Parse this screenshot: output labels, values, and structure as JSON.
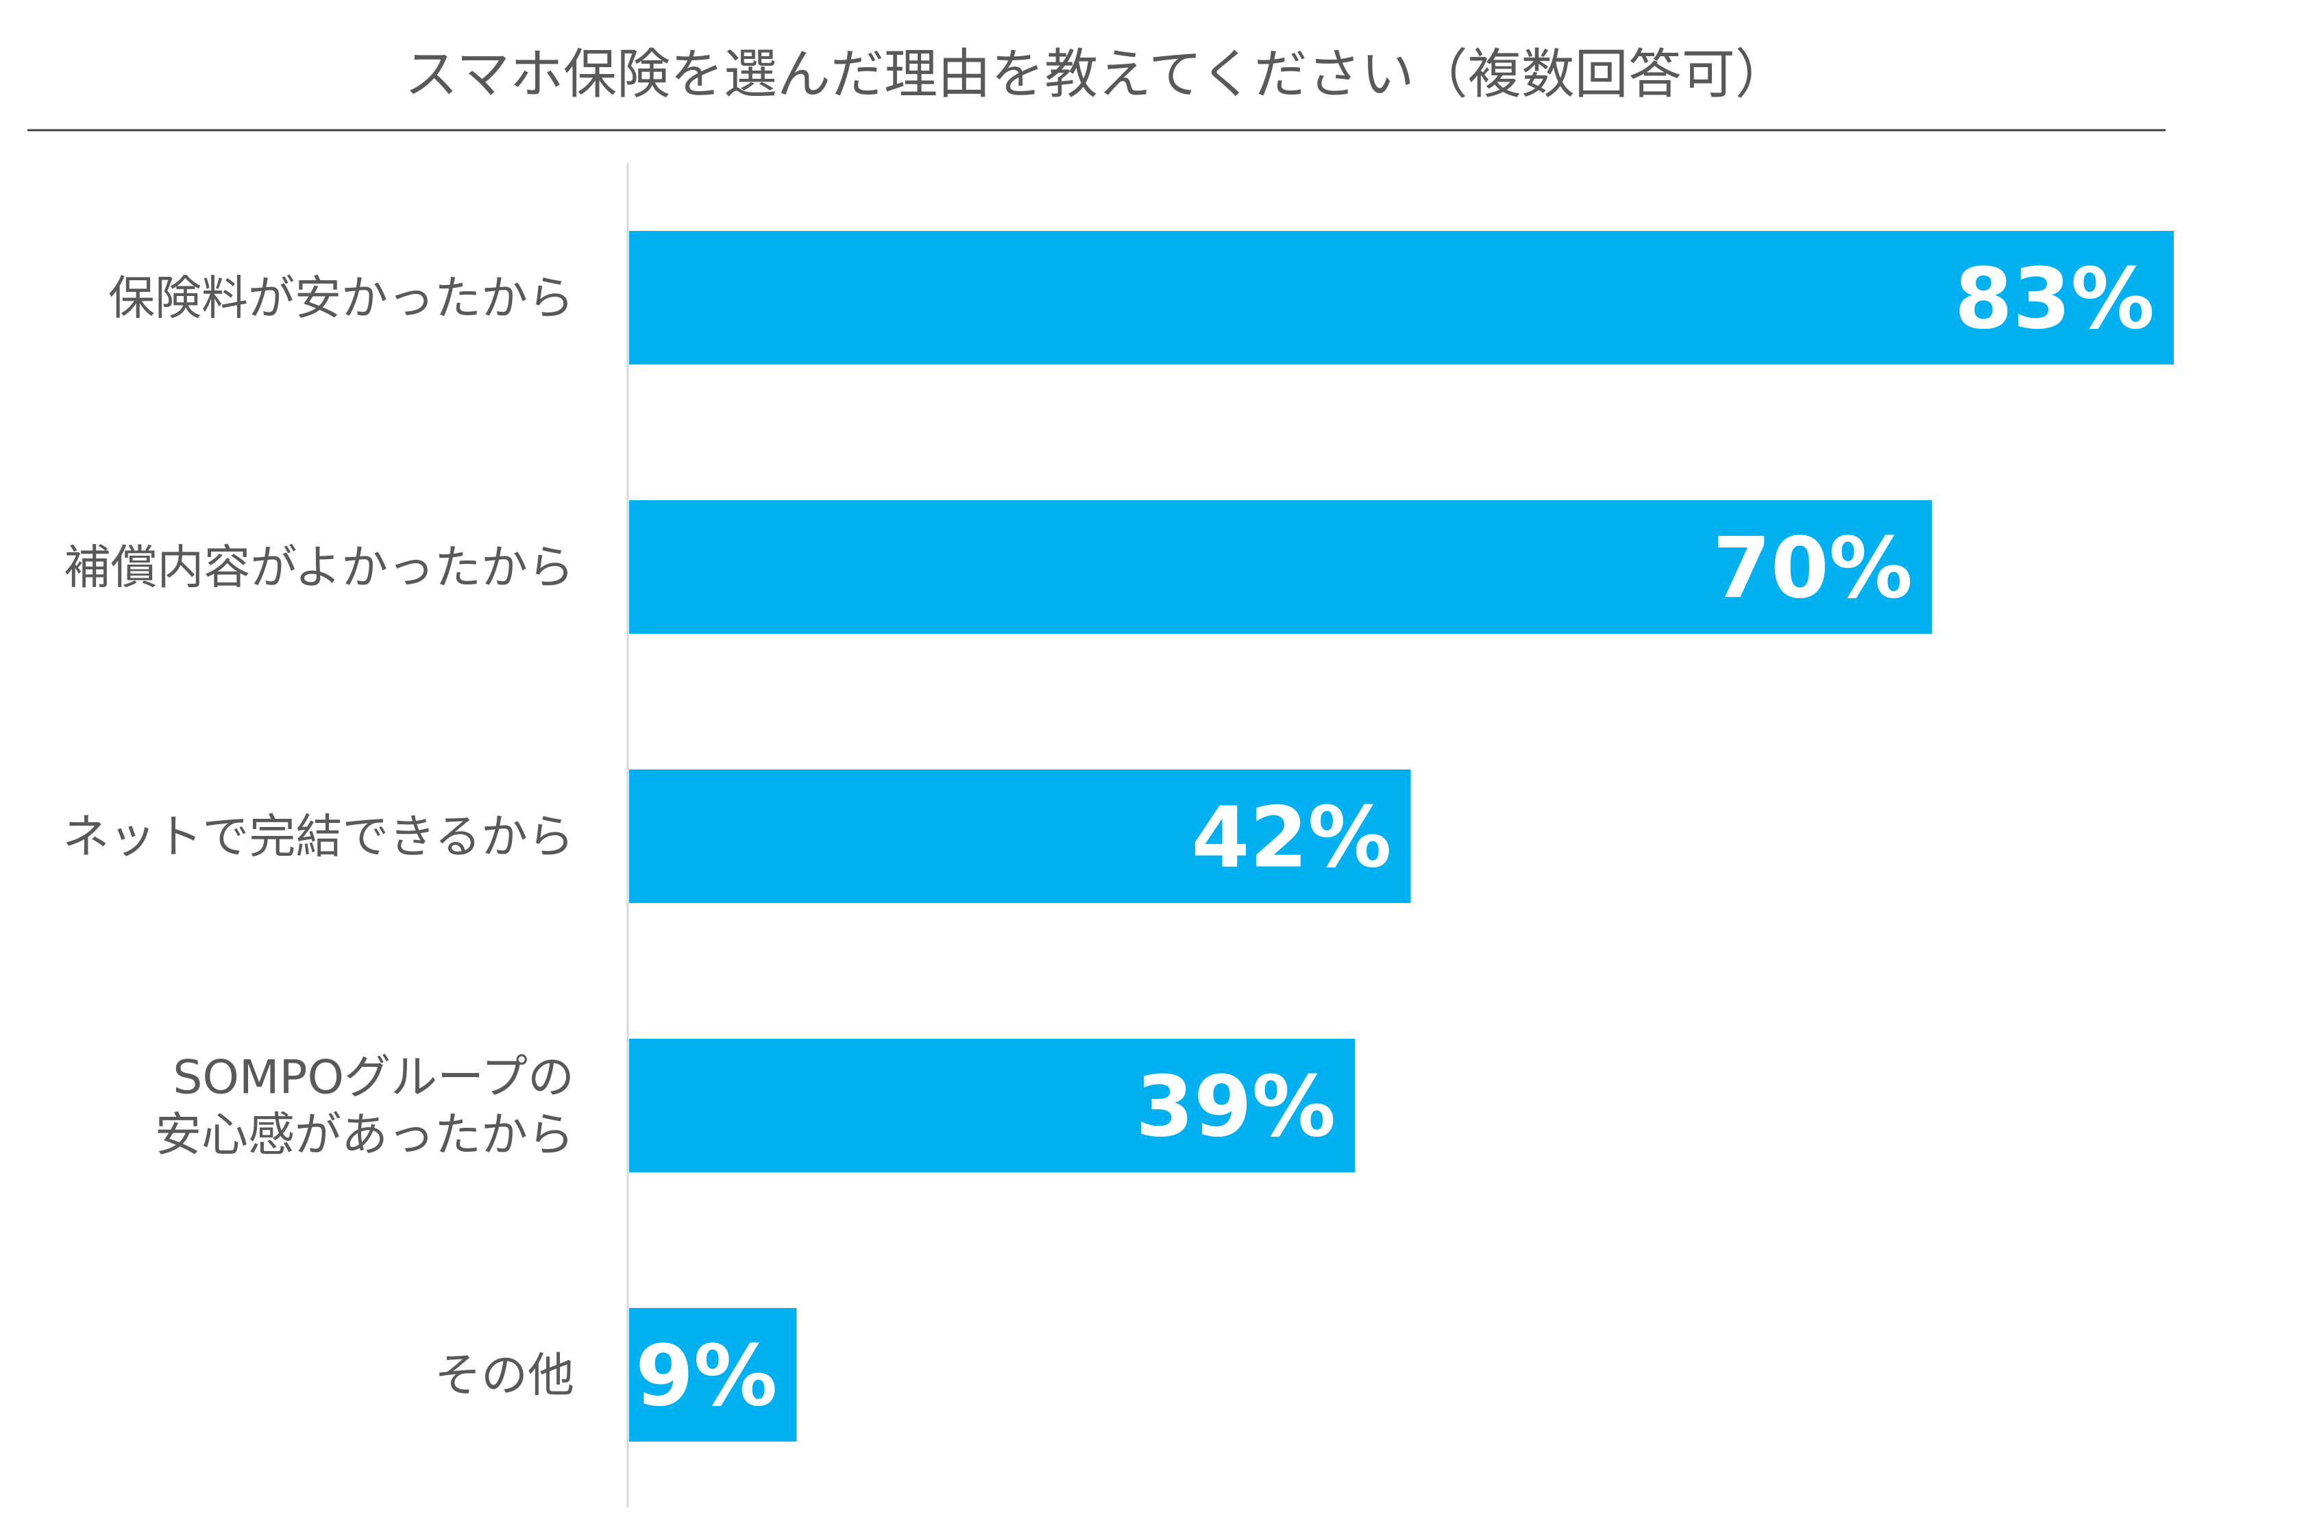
{
  "chart_data": {
    "type": "bar",
    "orientation": "horizontal",
    "title": "スマホ保険を選んだ理由を教えてください（複数回答可）",
    "categories": [
      [
        "保険料が安かったから"
      ],
      [
        "補償内容がよかったから"
      ],
      [
        "ネットで完結できるから"
      ],
      [
        "SOMPOグループの",
        "安心感があったから"
      ],
      [
        "その他"
      ]
    ],
    "values": [
      83,
      70,
      42,
      39,
      9
    ],
    "value_labels": [
      "83%",
      "70%",
      "42%",
      "39%",
      "9%"
    ],
    "xlim": [
      0,
      83
    ],
    "grid": false,
    "legend": "none",
    "colors": {
      "bar": "#00B0F0",
      "text": "#595959",
      "value_text": "#FFFFFF",
      "title_rule": "#404040",
      "axis": "#D9D9D9"
    }
  }
}
